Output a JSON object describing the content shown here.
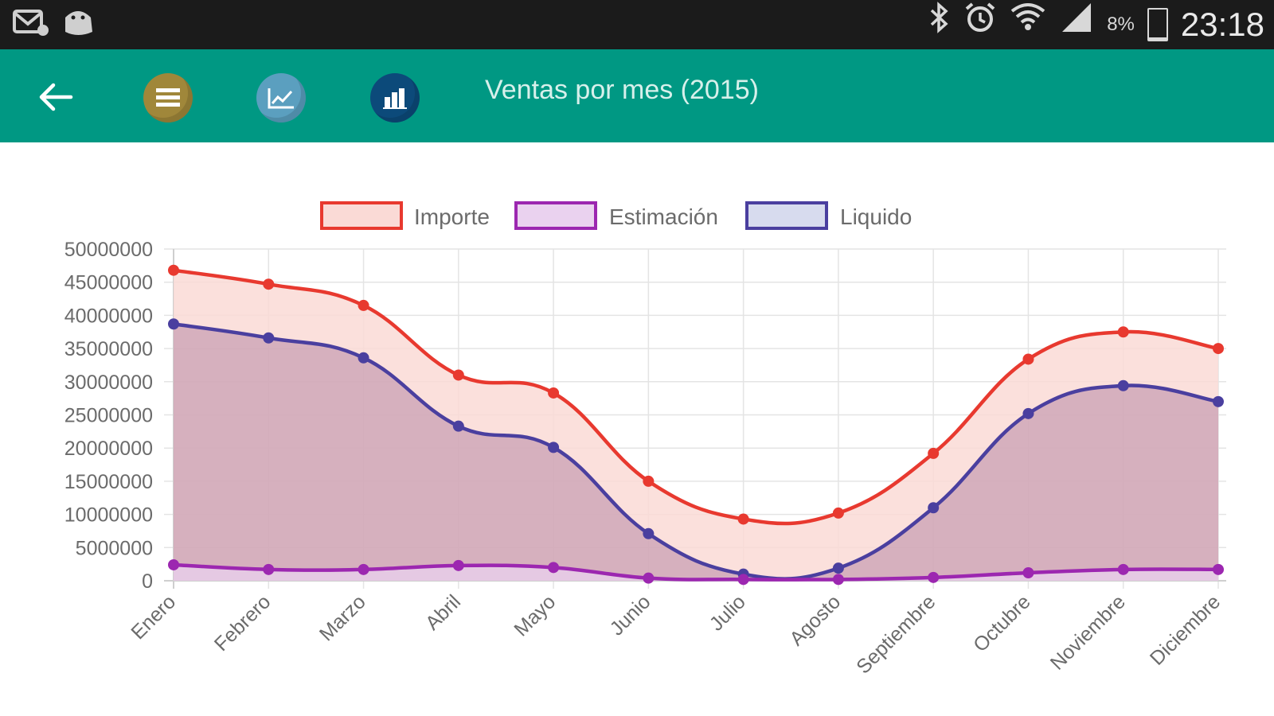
{
  "status_bar": {
    "battery_text": "8%",
    "battery_level": 0.08,
    "time": "23:18",
    "left_icons": [
      "mail-icon",
      "android-icon"
    ],
    "right_icons": [
      "bluetooth-icon",
      "alarm-icon",
      "wifi-icon",
      "signal-icon",
      "battery-icon"
    ]
  },
  "app_bar": {
    "title": "Ventas por mes (2015)",
    "color": "#009883",
    "buttons": [
      {
        "icon": "list-icon",
        "color": "#a0873a"
      },
      {
        "icon": "line-chart-icon",
        "color": "#5b9fbf"
      },
      {
        "icon": "bar-chart-icon",
        "color": "#0c4a7a"
      }
    ]
  },
  "chart_data": {
    "type": "area",
    "categories": [
      "Enero",
      "Febrero",
      "Marzo",
      "Abril",
      "Mayo",
      "Junio",
      "Julio",
      "Agosto",
      "Septiembre",
      "Octubre",
      "Noviembre",
      "Diciembre"
    ],
    "ylim": [
      0,
      50000000
    ],
    "yticks": [
      "50000000",
      "45000000",
      "40000000",
      "35000000",
      "30000000",
      "25000000",
      "20000000",
      "15000000",
      "10000000",
      "5000000",
      "0"
    ],
    "grid": true,
    "legend_position": "top",
    "series": [
      {
        "name": "Importe",
        "color": "#e8392f",
        "fill": "#fadad6",
        "values": [
          46800000,
          44700000,
          41500000,
          31000000,
          28300000,
          15000000,
          9300000,
          10200000,
          19200000,
          33400000,
          37500000,
          35000000
        ]
      },
      {
        "name": "Estimación",
        "color": "#9c27b0",
        "fill": "#ead2ef",
        "values": [
          2400000,
          1700000,
          1700000,
          2300000,
          2000000,
          400000,
          200000,
          200000,
          500000,
          1200000,
          1700000,
          1700000
        ]
      },
      {
        "name": "Liquido",
        "color": "#4a3f9f",
        "fill": "#d7dbee",
        "values": [
          38700000,
          36600000,
          33600000,
          23300000,
          20100000,
          7100000,
          1000000,
          1900000,
          11000000,
          25200000,
          29400000,
          27000000
        ]
      }
    ]
  }
}
